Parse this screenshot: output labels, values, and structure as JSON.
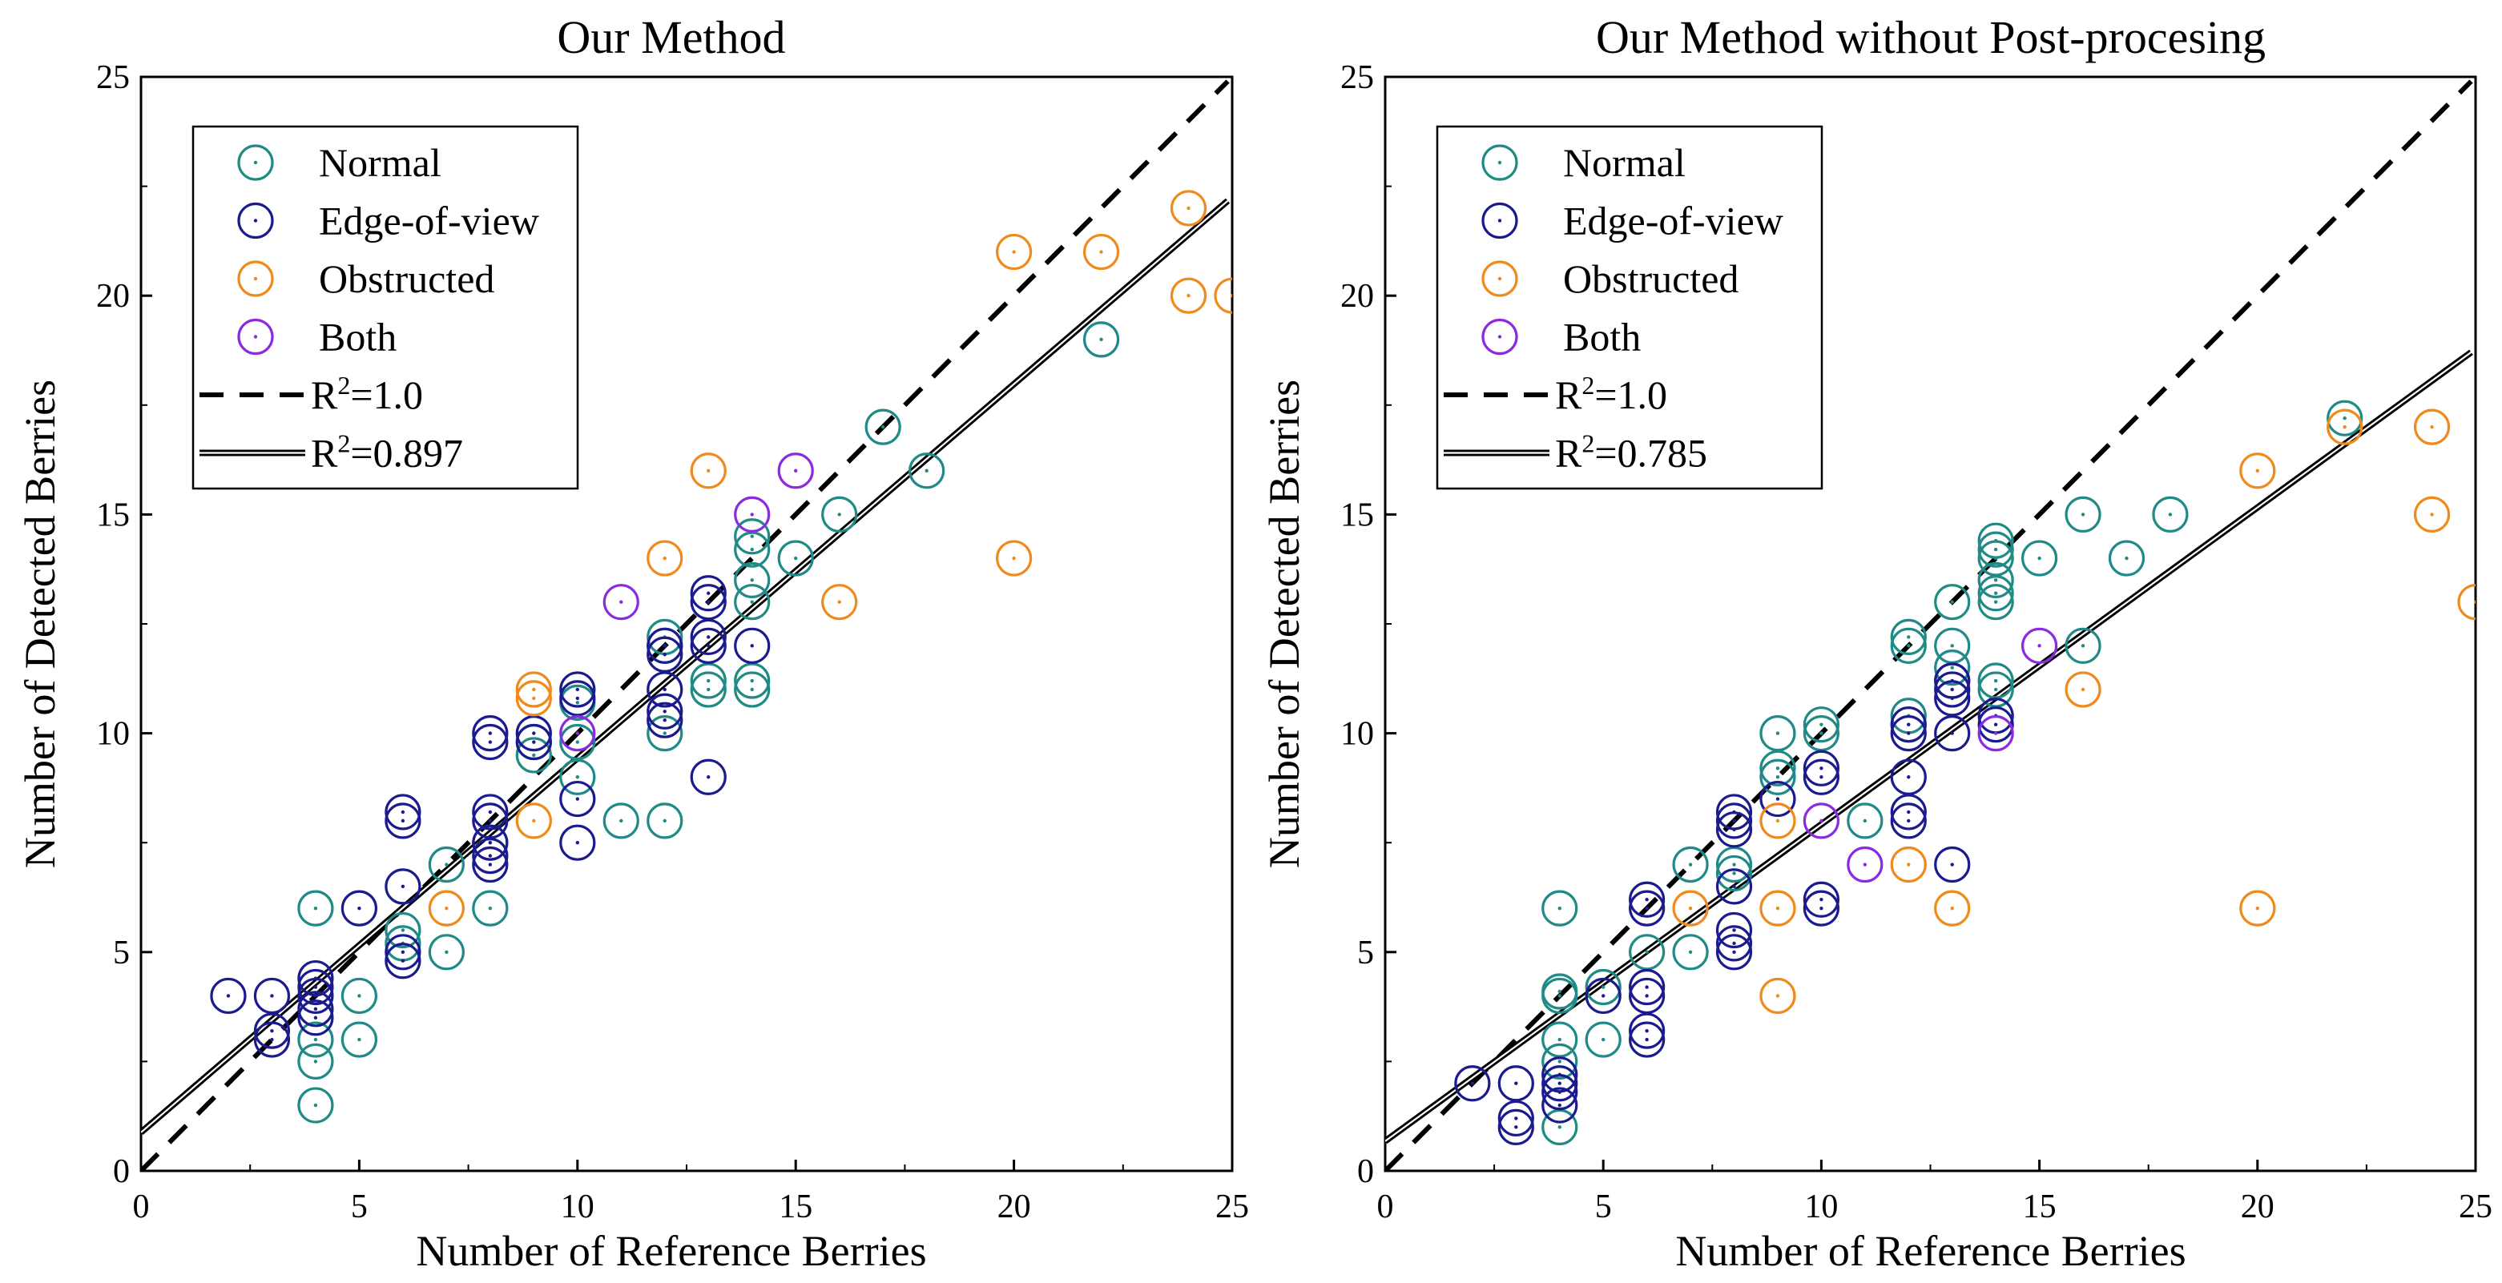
{
  "chart_data": [
    {
      "type": "scatter",
      "title": "Our Method",
      "xlabel": "Number of Reference Berries",
      "ylabel": "Number of Detected Berries",
      "xlim": [
        0,
        25
      ],
      "ylim": [
        0,
        25
      ],
      "xticks": [
        "0",
        "5",
        "10",
        "15",
        "20",
        "25"
      ],
      "yticks": [
        "0",
        "5",
        "10",
        "15",
        "20",
        "25"
      ],
      "legend_position": "top-left",
      "series": [
        {
          "name": "Normal",
          "color": "#1f8a86",
          "points": [
            [
              4,
              6
            ],
            [
              4,
              3
            ],
            [
              4,
              2.5
            ],
            [
              4,
              1.5
            ],
            [
              5,
              4
            ],
            [
              5,
              3
            ],
            [
              6,
              5.5
            ],
            [
              6,
              5.2
            ],
            [
              7,
              5
            ],
            [
              7,
              7
            ],
            [
              8,
              6
            ],
            [
              8,
              7.5
            ],
            [
              9,
              9.5
            ],
            [
              9,
              9.8
            ],
            [
              10,
              9
            ],
            [
              10,
              9.8
            ],
            [
              10,
              10.7
            ],
            [
              11,
              8
            ],
            [
              12,
              8
            ],
            [
              12,
              10
            ],
            [
              12,
              12
            ],
            [
              12,
              12.2
            ],
            [
              13,
              11
            ],
            [
              13,
              11.2
            ],
            [
              14,
              11
            ],
            [
              14,
              11.2
            ],
            [
              14,
              13
            ],
            [
              14,
              13.5
            ],
            [
              14,
              14.2
            ],
            [
              14,
              14.5
            ],
            [
              15,
              14
            ],
            [
              16,
              15
            ],
            [
              17,
              17
            ],
            [
              18,
              16
            ],
            [
              22,
              19
            ]
          ]
        },
        {
          "name": "Edge-of-view",
          "color": "#1b1b8f",
          "points": [
            [
              2,
              4
            ],
            [
              3,
              4
            ],
            [
              3,
              3
            ],
            [
              3,
              3.2
            ],
            [
              4,
              4
            ],
            [
              4,
              3.5
            ],
            [
              4,
              3.7
            ],
            [
              4,
              4.2
            ],
            [
              4,
              4.4
            ],
            [
              5,
              6
            ],
            [
              6,
              4.8
            ],
            [
              6,
              5
            ],
            [
              6,
              6.5
            ],
            [
              6,
              8
            ],
            [
              6,
              8.2
            ],
            [
              8,
              7
            ],
            [
              8,
              7.2
            ],
            [
              8,
              7.5
            ],
            [
              8,
              8
            ],
            [
              8,
              8.2
            ],
            [
              8,
              9.8
            ],
            [
              8,
              10
            ],
            [
              9,
              9.8
            ],
            [
              9,
              10
            ],
            [
              10,
              7.5
            ],
            [
              10,
              8.5
            ],
            [
              10,
              10.8
            ],
            [
              10,
              11
            ],
            [
              12,
              10.3
            ],
            [
              12,
              10.5
            ],
            [
              12,
              11
            ],
            [
              12,
              11.8
            ],
            [
              12,
              12
            ],
            [
              13,
              9
            ],
            [
              13,
              12
            ],
            [
              13,
              12.2
            ],
            [
              13,
              13
            ],
            [
              13,
              13.2
            ],
            [
              14,
              12
            ]
          ]
        },
        {
          "name": "Obstructed",
          "color": "#f08a1c",
          "points": [
            [
              7,
              6
            ],
            [
              9,
              8
            ],
            [
              9,
              10.8
            ],
            [
              9,
              11
            ],
            [
              12,
              14
            ],
            [
              13,
              16
            ],
            [
              16,
              13
            ],
            [
              20,
              21
            ],
            [
              20,
              14
            ],
            [
              22,
              21
            ],
            [
              24,
              22
            ],
            [
              24,
              20
            ],
            [
              25,
              20
            ]
          ]
        },
        {
          "name": "Both",
          "color": "#8a2be2",
          "points": [
            [
              10,
              10
            ],
            [
              11,
              13
            ],
            [
              14,
              15
            ],
            [
              15,
              16
            ]
          ]
        }
      ],
      "lines": [
        {
          "name": "R²=1.0",
          "style": "dashed",
          "slope": 1.0,
          "intercept": 0.0
        },
        {
          "name": "R²=0.897",
          "style": "double",
          "slope": 0.855,
          "intercept": 0.88
        }
      ]
    },
    {
      "type": "scatter",
      "title": "Our Method without Post-procesing",
      "xlabel": "Number of Reference Berries",
      "ylabel": "Number of Detected Berries",
      "xlim": [
        0,
        25
      ],
      "ylim": [
        0,
        25
      ],
      "xticks": [
        "0",
        "5",
        "10",
        "15",
        "20",
        "25"
      ],
      "yticks": [
        "0",
        "5",
        "10",
        "15",
        "20",
        "25"
      ],
      "legend_position": "top-left",
      "series": [
        {
          "name": "Normal",
          "color": "#1f8a86",
          "points": [
            [
              4,
              6
            ],
            [
              4,
              4
            ],
            [
              4,
              4.1
            ],
            [
              4,
              3
            ],
            [
              4,
              2.5
            ],
            [
              4,
              1
            ],
            [
              5,
              4.2
            ],
            [
              5,
              3
            ],
            [
              6,
              5
            ],
            [
              7,
              7
            ],
            [
              7,
              5
            ],
            [
              8,
              6.8
            ],
            [
              8,
              7
            ],
            [
              9,
              10
            ],
            [
              9,
              9
            ],
            [
              9,
              9.2
            ],
            [
              10,
              10
            ],
            [
              10,
              10.2
            ],
            [
              11,
              8
            ],
            [
              12,
              10.2
            ],
            [
              12,
              10.4
            ],
            [
              12,
              12
            ],
            [
              12,
              12.2
            ],
            [
              13,
              13
            ],
            [
              13,
              12
            ],
            [
              13,
              11.2
            ],
            [
              13,
              11.5
            ],
            [
              14,
              14
            ],
            [
              14,
              14.2
            ],
            [
              14,
              14.4
            ],
            [
              14,
              13.5
            ],
            [
              14,
              13.2
            ],
            [
              14,
              13
            ],
            [
              14,
              11
            ],
            [
              14,
              11.2
            ],
            [
              15,
              14
            ],
            [
              16,
              15
            ],
            [
              16,
              12
            ],
            [
              17,
              14
            ],
            [
              18,
              15
            ],
            [
              22,
              17.2
            ]
          ]
        },
        {
          "name": "Edge-of-view",
          "color": "#1b1b8f",
          "points": [
            [
              2,
              2
            ],
            [
              3,
              2
            ],
            [
              3,
              1
            ],
            [
              3,
              1.2
            ],
            [
              4,
              2.2
            ],
            [
              4,
              2
            ],
            [
              4,
              1.8
            ],
            [
              4,
              1.5
            ],
            [
              5,
              4
            ],
            [
              6,
              6
            ],
            [
              6,
              6.2
            ],
            [
              6,
              4
            ],
            [
              6,
              4.2
            ],
            [
              6,
              3
            ],
            [
              6,
              3.2
            ],
            [
              8,
              8
            ],
            [
              8,
              8.2
            ],
            [
              8,
              7.8
            ],
            [
              8,
              6.5
            ],
            [
              8,
              5.5
            ],
            [
              8,
              5.2
            ],
            [
              8,
              5
            ],
            [
              9,
              8.5
            ],
            [
              10,
              9
            ],
            [
              10,
              9.2
            ],
            [
              10,
              6
            ],
            [
              10,
              6.2
            ],
            [
              12,
              10
            ],
            [
              12,
              10.2
            ],
            [
              12,
              9
            ],
            [
              12,
              8
            ],
            [
              12,
              8.2
            ],
            [
              13,
              11
            ],
            [
              13,
              10.8
            ],
            [
              13,
              11.2
            ],
            [
              13,
              10
            ],
            [
              13,
              7
            ],
            [
              14,
              10.2
            ],
            [
              14,
              10.4
            ]
          ]
        },
        {
          "name": "Obstructed",
          "color": "#f08a1c",
          "points": [
            [
              7,
              6
            ],
            [
              9,
              8
            ],
            [
              9,
              6
            ],
            [
              9,
              4
            ],
            [
              12,
              7
            ],
            [
              13,
              6
            ],
            [
              16,
              11
            ],
            [
              20,
              16
            ],
            [
              20,
              6
            ],
            [
              22,
              17
            ],
            [
              24,
              17
            ],
            [
              24,
              15
            ],
            [
              25,
              13
            ]
          ]
        },
        {
          "name": "Both",
          "color": "#8a2be2",
          "points": [
            [
              10,
              8
            ],
            [
              11,
              7
            ],
            [
              14,
              10
            ],
            [
              15,
              12
            ]
          ]
        }
      ],
      "lines": [
        {
          "name": "R²=1.0",
          "style": "dashed",
          "slope": 1.0,
          "intercept": 0.0
        },
        {
          "name": "R²=0.785",
          "style": "double",
          "slope": 0.724,
          "intercept": 0.68
        }
      ]
    }
  ]
}
